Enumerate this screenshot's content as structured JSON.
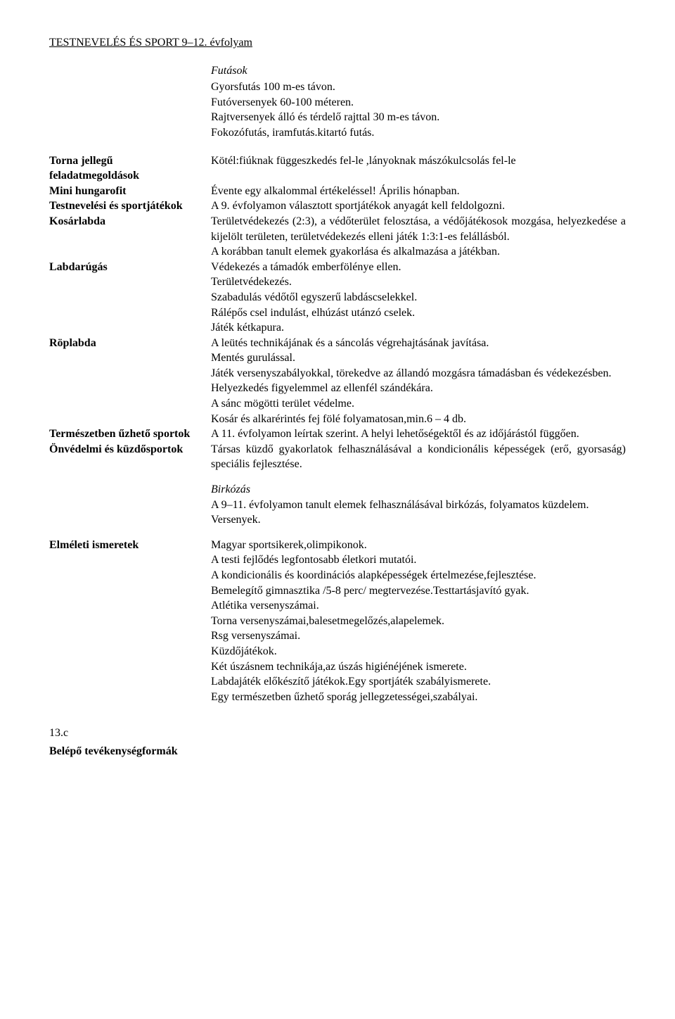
{
  "header": "TESTNEVELÉS ÉS SPORT 9–12. évfolyam",
  "futasok": {
    "title": "Futások",
    "lines": [
      "Gyorsfutás 100 m-es távon.",
      "Futóversenyek 60-100 méteren.",
      "Rajtversenyek álló és térdelő rajttal 30 m-es távon.",
      "Fokozófutás, iramfutás.kitartó futás."
    ]
  },
  "torna": {
    "label": "Torna jellegű feladatmegoldások",
    "text": "Kötél:fiúknak függeszkedés fel-le ,lányoknak mászókulcsolás fel-le"
  },
  "mini": {
    "label": "Mini hungarofit",
    "text": "Évente egy alkalommal értékeléssel! Április hónapban."
  },
  "testnev": {
    "label": "Testnevelési és sportjátékok",
    "text": "A 9. évfolyamon választott sportjátékok anyagát kell feldolgozni."
  },
  "kosar": {
    "label": "Kosárlabda",
    "p1": "Területvédekezés (2:3), a védőterület felosztása, a védőjátékosok mozgása, helyezkedése a kijelölt területen, területvédekezés elleni játék 1:3:1-es felállásból.",
    "p2": "A korábban tanult elemek gyakorlása és alkalmazása a játékban."
  },
  "labdarugas": {
    "label": "Labdarúgás",
    "lines": [
      "Védekezés a támadók emberfölénye ellen.",
      "Területvédekezés.",
      "Szabadulás védőtől egyszerű labdáscselekkel.",
      "Rálépős csel indulást, elhúzást utánzó cselek.",
      "Játék kétkapura."
    ]
  },
  "roplabda": {
    "label": "Röplabda",
    "l1": "A leütés technikájának és a sáncolás végrehajtásának javítása.",
    "l2": "Mentés gurulással.",
    "l3": "Játék versenyszabályokkal, törekedve az állandó mozgásra támadásban és védekezésben.",
    "l4": "Helyezkedés figyelemmel az ellenfél szándékára.",
    "l5": "A sánc mögötti terület védelme.",
    "l6": "Kosár és alkarérintés fej fölé folyamatosan,min.6 – 4 db."
  },
  "termeszet": {
    "label": "Természetben űzhető sportok",
    "text": "A 11. évfolyamon leírtak szerint. A helyi lehetőségektől és az időjárástól függően."
  },
  "onvedelmi": {
    "label": "Önvédelmi és küzdősportok",
    "text": "Társas küzdő gyakorlatok felhasználásával a kondicionális képességek (erő, gyorsaság) speciális fejlesztése."
  },
  "birkozas": {
    "title": "Birkózás",
    "l1": "A 9–11. évfolyamon tanult elemek felhasználásával birkózás, folyamatos küzdelem.",
    "l2": "Versenyek."
  },
  "elmeleti": {
    "label": "Elméleti ismeretek",
    "lines": [
      "Magyar sportsikerek,olimpikonok.",
      "A testi fejlődés legfontosabb életkori mutatói.",
      "A kondicionális és koordinációs alapképességek értelmezése,fejlesztése.",
      "Bemelegítő gimnasztika /5-8 perc/ megtervezése.Testtartásjavító gyak.",
      "Atlétika versenyszámai.",
      "Torna versenyszámai,balesetmegelőzés,alapelemek.",
      "Rsg versenyszámai.",
      "Küzdőjátékok.",
      "Két úszásnem technikája,az úszás higiénéjének ismerete.",
      "Labdajáték előkészítő játékok.Egy sportjáték szabályismerete.",
      "Egy természetben űzhető sporág jellegzetességei,szabályai."
    ]
  },
  "page_number": "13.c",
  "footer": "Belépő tevékenységformák"
}
